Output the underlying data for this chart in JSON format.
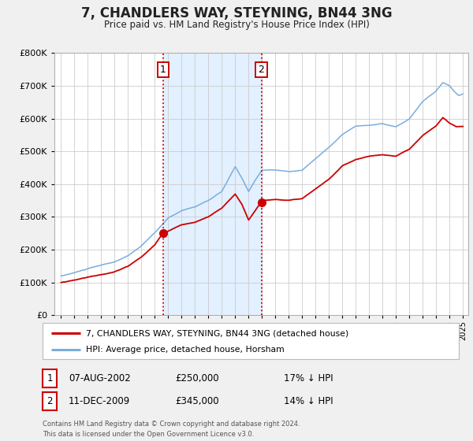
{
  "title": "7, CHANDLERS WAY, STEYNING, BN44 3NG",
  "subtitle": "Price paid vs. HM Land Registry's House Price Index (HPI)",
  "legend_line1": "7, CHANDLERS WAY, STEYNING, BN44 3NG (detached house)",
  "legend_line2": "HPI: Average price, detached house, Horsham",
  "footnote1": "Contains HM Land Registry data © Crown copyright and database right 2024.",
  "footnote2": "This data is licensed under the Open Government Licence v3.0.",
  "transaction1_date": "07-AUG-2002",
  "transaction1_price": "£250,000",
  "transaction1_hpi": "17% ↓ HPI",
  "transaction1_year": 2002.6,
  "transaction1_value": 250000,
  "transaction2_date": "11-DEC-2009",
  "transaction2_price": "£345,000",
  "transaction2_hpi": "14% ↓ HPI",
  "transaction2_year": 2009.95,
  "transaction2_value": 345000,
  "hpi_color": "#7aaddc",
  "price_color": "#cc0000",
  "vline_color": "#cc0000",
  "shade_color": "#ddeeff",
  "background_color": "#f0f0f0",
  "plot_bg_color": "#ffffff",
  "ylim_min": 0,
  "ylim_max": 800000
}
